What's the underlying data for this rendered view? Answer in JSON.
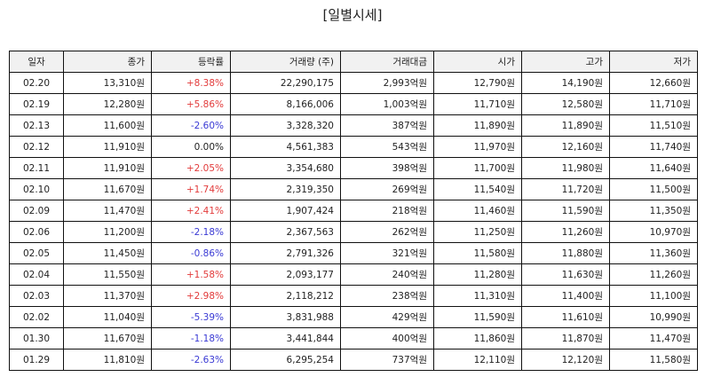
{
  "title": "[일별시세]",
  "columns": [
    "일자",
    "종가",
    "등락률",
    "거래량 (주)",
    "거래대금",
    "시가",
    "고가",
    "저가"
  ],
  "colors": {
    "up": "#e23b3b",
    "down": "#3a3ad4",
    "flat": "#222222"
  },
  "rows": [
    {
      "date": "02.20",
      "close": "13,310원",
      "change": "+8.38%",
      "dir": "up",
      "volume": "22,290,175",
      "amount": "2,993억원",
      "open": "12,790원",
      "high": "14,190원",
      "low": "12,660원"
    },
    {
      "date": "02.19",
      "close": "12,280원",
      "change": "+5.86%",
      "dir": "up",
      "volume": "8,166,006",
      "amount": "1,003억원",
      "open": "11,710원",
      "high": "12,580원",
      "low": "11,710원"
    },
    {
      "date": "02.13",
      "close": "11,600원",
      "change": "-2.60%",
      "dir": "down",
      "volume": "3,328,320",
      "amount": "387억원",
      "open": "11,890원",
      "high": "11,890원",
      "low": "11,510원"
    },
    {
      "date": "02.12",
      "close": "11,910원",
      "change": "0.00%",
      "dir": "flat",
      "volume": "4,561,383",
      "amount": "543억원",
      "open": "11,970원",
      "high": "12,160원",
      "low": "11,740원"
    },
    {
      "date": "02.11",
      "close": "11,910원",
      "change": "+2.05%",
      "dir": "up",
      "volume": "3,354,680",
      "amount": "398억원",
      "open": "11,700원",
      "high": "11,980원",
      "low": "11,640원"
    },
    {
      "date": "02.10",
      "close": "11,670원",
      "change": "+1.74%",
      "dir": "up",
      "volume": "2,319,350",
      "amount": "269억원",
      "open": "11,540원",
      "high": "11,720원",
      "low": "11,500원"
    },
    {
      "date": "02.09",
      "close": "11,470원",
      "change": "+2.41%",
      "dir": "up",
      "volume": "1,907,424",
      "amount": "218억원",
      "open": "11,460원",
      "high": "11,590원",
      "low": "11,350원"
    },
    {
      "date": "02.06",
      "close": "11,200원",
      "change": "-2.18%",
      "dir": "down",
      "volume": "2,367,563",
      "amount": "262억원",
      "open": "11,250원",
      "high": "11,260원",
      "low": "10,970원"
    },
    {
      "date": "02.05",
      "close": "11,450원",
      "change": "-0.86%",
      "dir": "down",
      "volume": "2,791,326",
      "amount": "321억원",
      "open": "11,580원",
      "high": "11,880원",
      "low": "11,360원"
    },
    {
      "date": "02.04",
      "close": "11,550원",
      "change": "+1.58%",
      "dir": "up",
      "volume": "2,093,177",
      "amount": "240억원",
      "open": "11,280원",
      "high": "11,630원",
      "low": "11,260원"
    },
    {
      "date": "02.03",
      "close": "11,370원",
      "change": "+2.98%",
      "dir": "up",
      "volume": "2,118,212",
      "amount": "238억원",
      "open": "11,310원",
      "high": "11,400원",
      "low": "11,100원"
    },
    {
      "date": "02.02",
      "close": "11,040원",
      "change": "-5.39%",
      "dir": "down",
      "volume": "3,831,988",
      "amount": "429억원",
      "open": "11,590원",
      "high": "11,610원",
      "low": "10,990원"
    },
    {
      "date": "01.30",
      "close": "11,670원",
      "change": "-1.18%",
      "dir": "down",
      "volume": "3,441,844",
      "amount": "400억원",
      "open": "11,860원",
      "high": "11,870원",
      "low": "11,470원"
    },
    {
      "date": "01.29",
      "close": "11,810원",
      "change": "-2.63%",
      "dir": "down",
      "volume": "6,295,254",
      "amount": "737억원",
      "open": "12,110원",
      "high": "12,120원",
      "low": "11,580원"
    }
  ]
}
